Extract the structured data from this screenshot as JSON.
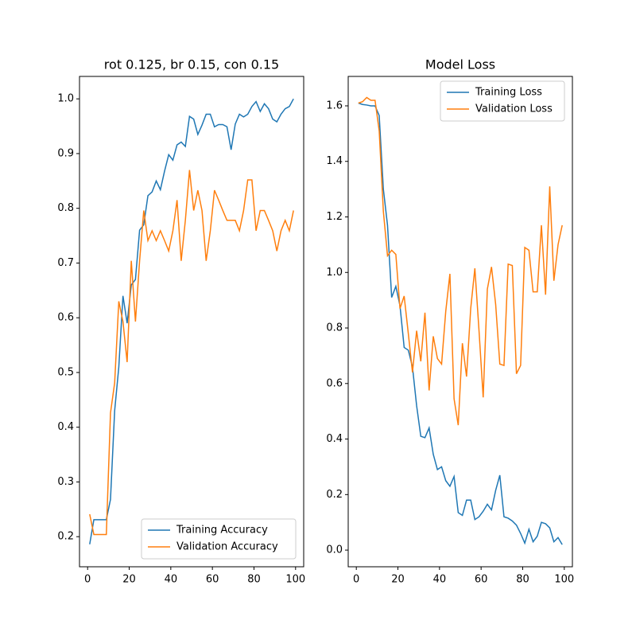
{
  "chart_data": [
    {
      "type": "line",
      "title": "rot 0.125, br 0.15, con 0.15",
      "x": [
        1,
        3,
        5,
        7,
        9,
        11,
        13,
        15,
        17,
        19,
        21,
        23,
        25,
        27,
        29,
        31,
        33,
        35,
        37,
        39,
        41,
        43,
        45,
        47,
        49,
        51,
        53,
        55,
        57,
        59,
        61,
        63,
        65,
        67,
        69,
        71,
        73,
        75,
        77,
        79,
        81,
        83,
        85,
        87,
        89,
        91,
        93,
        95,
        97,
        99
      ],
      "series": [
        {
          "name": "Training Accuracy",
          "color": "#1f77b4",
          "values": [
            0.186,
            0.231,
            0.231,
            0.231,
            0.231,
            0.268,
            0.43,
            0.51,
            0.64,
            0.59,
            0.66,
            0.67,
            0.76,
            0.77,
            0.823,
            0.83,
            0.85,
            0.834,
            0.868,
            0.898,
            0.888,
            0.916,
            0.921,
            0.913,
            0.968,
            0.963,
            0.935,
            0.952,
            0.972,
            0.972,
            0.949,
            0.953,
            0.953,
            0.949,
            0.907,
            0.954,
            0.972,
            0.967,
            0.972,
            0.986,
            0.995,
            0.977,
            0.991,
            0.982,
            0.963,
            0.958,
            0.972,
            0.982,
            0.986,
            1.0
          ]
        },
        {
          "name": "Validation Accuracy",
          "color": "#ff7f0e",
          "values": [
            0.241,
            0.204,
            0.204,
            0.204,
            0.204,
            0.426,
            0.481,
            0.63,
            0.593,
            0.519,
            0.704,
            0.593,
            0.704,
            0.796,
            0.741,
            0.759,
            0.741,
            0.759,
            0.741,
            0.722,
            0.759,
            0.815,
            0.704,
            0.778,
            0.87,
            0.796,
            0.833,
            0.796,
            0.704,
            0.759,
            0.833,
            0.815,
            0.796,
            0.778,
            0.778,
            0.778,
            0.759,
            0.796,
            0.852,
            0.852,
            0.759,
            0.796,
            0.796,
            0.778,
            0.759,
            0.722,
            0.759,
            0.778,
            0.759,
            0.796
          ]
        }
      ],
      "xlim": [
        -3.9,
        103.9
      ],
      "xticks": [
        0,
        20,
        40,
        60,
        80,
        100
      ],
      "ylim": [
        0.145,
        1.041
      ],
      "yticks": [
        0.2,
        0.3,
        0.4,
        0.5,
        0.6,
        0.7,
        0.8,
        0.9,
        {
          "value": 1.0,
          "label": "1.0"
        }
      ],
      "legend": "lower right"
    },
    {
      "type": "line",
      "title": "Model Loss",
      "x": [
        1,
        3,
        5,
        7,
        9,
        11,
        13,
        15,
        17,
        19,
        21,
        23,
        25,
        27,
        29,
        31,
        33,
        35,
        37,
        39,
        41,
        43,
        45,
        47,
        49,
        51,
        53,
        55,
        57,
        59,
        61,
        63,
        65,
        67,
        69,
        71,
        73,
        75,
        77,
        79,
        81,
        83,
        85,
        87,
        89,
        91,
        93,
        95,
        97,
        99
      ],
      "series": [
        {
          "name": "Training Loss",
          "color": "#1f77b4",
          "values": [
            1.61,
            1.605,
            1.603,
            1.6,
            1.6,
            1.565,
            1.3,
            1.17,
            0.91,
            0.95,
            0.88,
            0.73,
            0.72,
            0.66,
            0.52,
            0.41,
            0.405,
            0.44,
            0.345,
            0.29,
            0.3,
            0.25,
            0.23,
            0.265,
            0.135,
            0.125,
            0.18,
            0.18,
            0.11,
            0.12,
            0.14,
            0.165,
            0.145,
            0.215,
            0.27,
            0.12,
            0.115,
            0.105,
            0.09,
            0.06,
            0.025,
            0.075,
            0.03,
            0.05,
            0.1,
            0.095,
            0.08,
            0.03,
            0.045,
            0.02
          ]
        },
        {
          "name": "Validation Loss",
          "color": "#ff7f0e",
          "values": [
            1.61,
            1.615,
            1.63,
            1.62,
            1.62,
            1.51,
            1.22,
            1.06,
            1.08,
            1.065,
            0.87,
            0.915,
            0.78,
            0.64,
            0.79,
            0.68,
            0.855,
            0.575,
            0.77,
            0.69,
            0.67,
            0.86,
            0.995,
            0.545,
            0.45,
            0.745,
            0.625,
            0.87,
            1.015,
            0.79,
            0.55,
            0.94,
            1.02,
            0.885,
            0.67,
            0.665,
            1.03,
            1.025,
            0.635,
            0.665,
            1.09,
            1.08,
            0.93,
            0.93,
            1.17,
            0.92,
            1.31,
            0.97,
            1.1,
            1.17
          ]
        }
      ],
      "xlim": [
        -3.9,
        103.9
      ],
      "xticks": [
        0,
        20,
        40,
        60,
        80,
        100
      ],
      "ylim": [
        -0.06,
        1.706
      ],
      "yticks": [
        {
          "value": 0.0,
          "label": "0.0"
        },
        0.2,
        0.4,
        0.6,
        0.8,
        {
          "value": 1.0,
          "label": "1.0"
        },
        1.2,
        1.4,
        1.6
      ],
      "legend": "upper right"
    }
  ]
}
